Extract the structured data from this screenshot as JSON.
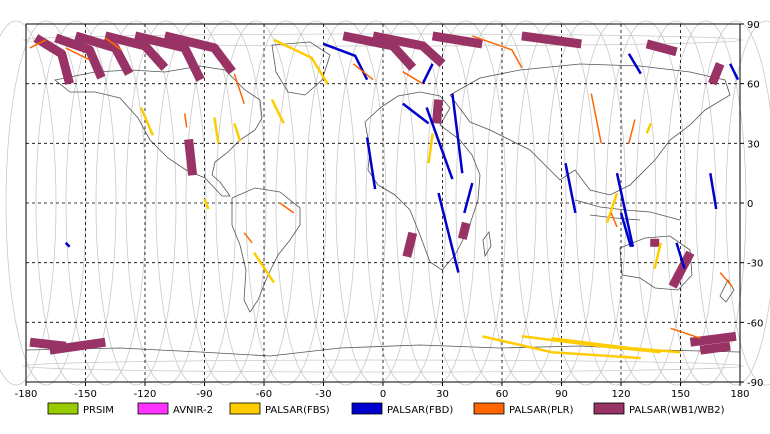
{
  "axes": {
    "x_ticks": [
      "-180",
      "-150",
      "-120",
      "-90",
      "-60",
      "-30",
      "0",
      "30",
      "60",
      "90",
      "120",
      "150",
      "180"
    ],
    "y_ticks": [
      "90",
      "60",
      "30",
      "0",
      "-30",
      "-60",
      "-90"
    ]
  },
  "legend": [
    {
      "label": "PRSIM",
      "color": "#99cc00"
    },
    {
      "label": "AVNIR-2",
      "color": "#ff33ff"
    },
    {
      "label": "PALSAR(FBS)",
      "color": "#ffcc00"
    },
    {
      "label": "PALSAR(FBD)",
      "color": "#0000cc"
    },
    {
      "label": "PALSAR(PLR)",
      "color": "#ff6600"
    },
    {
      "label": "PALSAR(WB1/WB2)",
      "color": "#993366"
    }
  ],
  "chart_data": {
    "type": "map",
    "projection": "equirectangular",
    "xlim": [
      -180,
      180
    ],
    "ylim": [
      -90,
      90
    ],
    "grid": true,
    "series": [
      {
        "name": "PALSAR(WB1/WB2)",
        "color": "#993366",
        "width": 9,
        "segments": [
          [
            [
              -175,
              83
            ],
            [
              -162,
              75
            ],
            [
              -158,
              60
            ]
          ],
          [
            [
              -165,
              83
            ],
            [
              -148,
              77
            ],
            [
              -142,
              63
            ]
          ],
          [
            [
              -155,
              84
            ],
            [
              -135,
              78
            ],
            [
              -128,
              65
            ]
          ],
          [
            [
              -140,
              84
            ],
            [
              -120,
              79
            ],
            [
              -110,
              68
            ]
          ],
          [
            [
              -125,
              84
            ],
            [
              -100,
              78
            ],
            [
              -92,
              62
            ]
          ],
          [
            [
              -110,
              84
            ],
            [
              -85,
              78
            ],
            [
              -76,
              66
            ]
          ],
          [
            [
              -98,
              32
            ],
            [
              -96,
              14
            ]
          ],
          [
            [
              -20,
              84
            ],
            [
              5,
              79
            ],
            [
              15,
              68
            ]
          ],
          [
            [
              -5,
              84
            ],
            [
              20,
              79
            ],
            [
              30,
              70
            ]
          ],
          [
            [
              28,
              52
            ],
            [
              27,
              40
            ]
          ],
          [
            [
              15,
              -15
            ],
            [
              12,
              -27
            ]
          ],
          [
            [
              42,
              -10
            ],
            [
              40,
              -18
            ]
          ],
          [
            [
              25,
              84
            ],
            [
              50,
              80
            ]
          ],
          [
            [
              70,
              84
            ],
            [
              100,
              80
            ]
          ],
          [
            [
              133,
              80
            ],
            [
              148,
              76
            ]
          ],
          [
            [
              170,
              70
            ],
            [
              166,
              60
            ]
          ],
          [
            [
              155,
              -25
            ],
            [
              146,
              -42
            ]
          ],
          [
            [
              137,
              -18
            ],
            [
              137,
              -22
            ]
          ],
          [
            [
              -178,
              -70
            ],
            [
              -160,
              -72
            ]
          ],
          [
            [
              -168,
              -74
            ],
            [
              -140,
              -70
            ]
          ],
          [
            [
              155,
              -70
            ],
            [
              178,
              -67
            ]
          ],
          [
            [
              160,
              -74
            ],
            [
              175,
              -72
            ]
          ]
        ]
      },
      {
        "name": "PALSAR(FBD)",
        "color": "#0000cc",
        "width": 2.5,
        "segments": [
          [
            [
              -30,
              80
            ],
            [
              -14,
              74
            ],
            [
              -8,
              62
            ]
          ],
          [
            [
              -8,
              33
            ],
            [
              -4,
              7
            ]
          ],
          [
            [
              22,
              48
            ],
            [
              35,
              12
            ]
          ],
          [
            [
              10,
              50
            ],
            [
              23,
              40
            ]
          ],
          [
            [
              35,
              55
            ],
            [
              40,
              15
            ]
          ],
          [
            [
              28,
              5
            ],
            [
              38,
              -35
            ]
          ],
          [
            [
              45,
              10
            ],
            [
              41,
              -5
            ]
          ],
          [
            [
              92,
              20
            ],
            [
              97,
              -5
            ]
          ],
          [
            [
              118,
              15
            ],
            [
              126,
              -22
            ]
          ],
          [
            [
              120,
              -5
            ],
            [
              125,
              -22
            ]
          ],
          [
            [
              148,
              -20
            ],
            [
              152,
              -33
            ]
          ],
          [
            [
              165,
              15
            ],
            [
              168,
              -3
            ]
          ],
          [
            [
              124,
              75
            ],
            [
              130,
              65
            ]
          ],
          [
            [
              175,
              70
            ],
            [
              179,
              62
            ]
          ],
          [
            [
              -160,
              -20
            ],
            [
              -158,
              -22
            ]
          ],
          [
            [
              20,
              60
            ],
            [
              25,
              70
            ]
          ]
        ]
      },
      {
        "name": "PALSAR(FBS)",
        "color": "#ffcc00",
        "width": 2.5,
        "segments": [
          [
            [
              -55,
              82
            ],
            [
              -36,
              73
            ],
            [
              -28,
              60
            ]
          ],
          [
            [
              -56,
              52
            ],
            [
              -50,
              40
            ]
          ],
          [
            [
              -122,
              48
            ],
            [
              -116,
              34
            ]
          ],
          [
            [
              -75,
              40
            ],
            [
              -72,
              31
            ]
          ],
          [
            [
              -85,
              43
            ],
            [
              -83,
              30
            ]
          ],
          [
            [
              -65,
              -25
            ],
            [
              -55,
              -40
            ]
          ],
          [
            [
              -90,
              2
            ],
            [
              -88,
              -3
            ]
          ],
          [
            [
              25,
              35
            ],
            [
              23,
              20
            ]
          ],
          [
            [
              118,
              5
            ],
            [
              113,
              -10
            ]
          ],
          [
            [
              50,
              -67
            ],
            [
              85,
              -75
            ],
            [
              130,
              -78
            ]
          ],
          [
            [
              70,
              -67
            ],
            [
              110,
              -72
            ],
            [
              140,
              -75
            ]
          ],
          [
            [
              85,
              -68
            ],
            [
              125,
              -73
            ],
            [
              150,
              -75
            ]
          ],
          [
            [
              140,
              -20
            ],
            [
              137,
              -33
            ]
          ],
          [
            [
              135,
              40
            ],
            [
              133,
              35
            ]
          ]
        ]
      },
      {
        "name": "PALSAR(PLR)",
        "color": "#ff6600",
        "width": 1.5,
        "segments": [
          [
            [
              -160,
              78
            ],
            [
              -148,
              72
            ]
          ],
          [
            [
              -140,
              83
            ],
            [
              -132,
              77
            ]
          ],
          [
            [
              -100,
              45
            ],
            [
              -99,
              38
            ]
          ],
          [
            [
              -75,
              65
            ],
            [
              -70,
              50
            ]
          ],
          [
            [
              -15,
              70
            ],
            [
              -5,
              62
            ]
          ],
          [
            [
              10,
              66
            ],
            [
              20,
              60
            ]
          ],
          [
            [
              45,
              84
            ],
            [
              65,
              77
            ],
            [
              70,
              68
            ]
          ],
          [
            [
              105,
              55
            ],
            [
              110,
              30
            ]
          ],
          [
            [
              115,
              -5
            ],
            [
              118,
              -12
            ]
          ],
          [
            [
              127,
              42
            ],
            [
              124,
              30
            ]
          ],
          [
            [
              -52,
              0
            ],
            [
              -45,
              -5
            ]
          ],
          [
            [
              170,
              -35
            ],
            [
              176,
              -42
            ]
          ],
          [
            [
              -170,
              82
            ],
            [
              -178,
              78
            ]
          ],
          [
            [
              -70,
              -15
            ],
            [
              -66,
              -20
            ]
          ],
          [
            [
              145,
              -63
            ],
            [
              160,
              -68
            ]
          ]
        ]
      }
    ]
  }
}
